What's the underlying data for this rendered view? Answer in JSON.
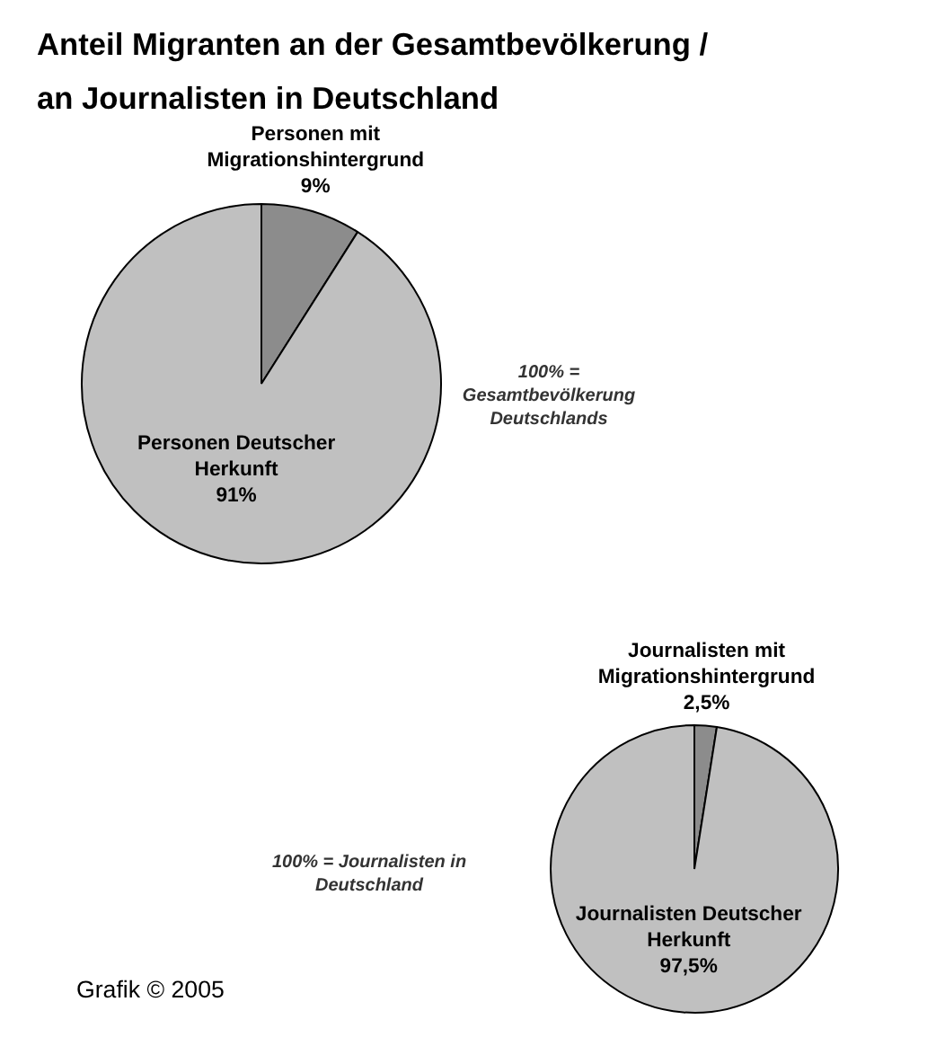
{
  "chart_data": [
    {
      "type": "pie",
      "title": "Anteil Migranten an der Gesamtbevölkerung / an Journalisten in Deutschland",
      "categories": [
        "Personen mit Migrationshintergrund",
        "Personen Deutscher Herkunft"
      ],
      "values": [
        9,
        91
      ],
      "colors": [
        "#8c8c8c",
        "#c0c0c0"
      ],
      "value_labels": [
        "9%",
        "91%"
      ],
      "annotations": [
        "100% = Gesamtbevölkerung Deutschlands"
      ]
    },
    {
      "type": "pie",
      "categories": [
        "Journalisten mit Migrationshintergrund",
        "Journalisten Deutscher Herkunft"
      ],
      "values": [
        2.5,
        97.5
      ],
      "colors": [
        "#8c8c8c",
        "#c0c0c0"
      ],
      "value_labels": [
        "2,5%",
        "97,5%"
      ],
      "annotations": [
        "100% = Journalisten in Deutschland",
        "Grafik © 2005"
      ]
    }
  ]
}
